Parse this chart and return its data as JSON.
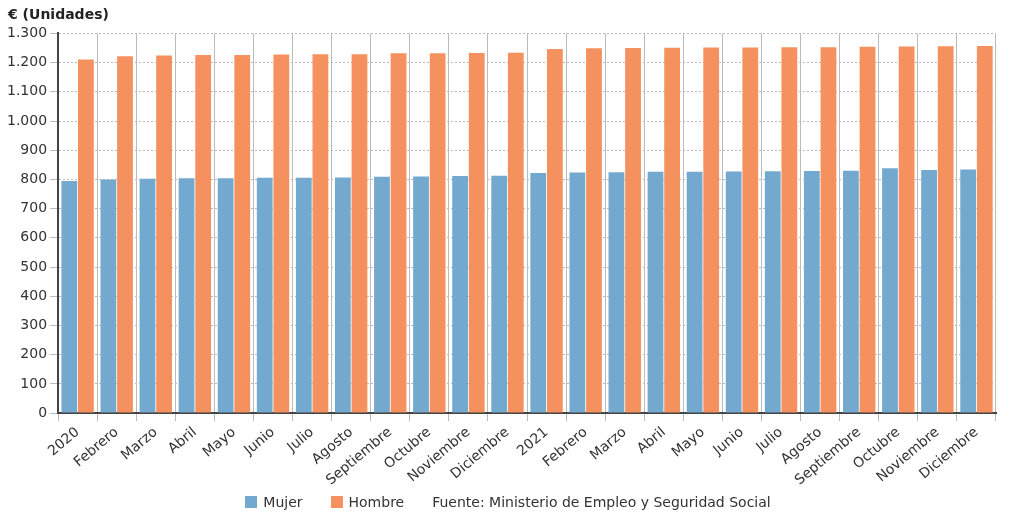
{
  "chart_data": {
    "type": "bar",
    "ylabel": "€ (Unidades)",
    "categories": [
      "2020",
      "Febrero",
      "Marzo",
      "Abril",
      "Mayo",
      "Junio",
      "Julio",
      "Agosto",
      "Septiembre",
      "Octubre",
      "Noviembre",
      "Diciembre",
      "2021",
      "Febrero",
      "Marzo",
      "Abril",
      "Mayo",
      "Junio",
      "Julio",
      "Agosto",
      "Septiembre",
      "Octubre",
      "Noviembre",
      "Diciembre"
    ],
    "series": [
      {
        "name": "Mujer",
        "color": "#74a9cf",
        "values": [
          795,
          800,
          802,
          804,
          804,
          806,
          806,
          807,
          809,
          810,
          812,
          813,
          822,
          824,
          825,
          826,
          826,
          827,
          828,
          829,
          830,
          838,
          832,
          834
        ]
      },
      {
        "name": "Hombre",
        "color": "#f4915e",
        "values": [
          1211,
          1222,
          1224,
          1226,
          1226,
          1228,
          1229,
          1229,
          1232,
          1232,
          1233,
          1234,
          1247,
          1249,
          1250,
          1251,
          1252,
          1252,
          1253,
          1253,
          1254,
          1255,
          1256,
          1257
        ]
      }
    ],
    "ylim": [
      0,
      1300
    ],
    "yticks": [
      {
        "value": 0,
        "label": "0"
      },
      {
        "value": 100,
        "label": "100"
      },
      {
        "value": 200,
        "label": "200"
      },
      {
        "value": 300,
        "label": "300"
      },
      {
        "value": 400,
        "label": "400"
      },
      {
        "value": 500,
        "label": "500"
      },
      {
        "value": 600,
        "label": "600"
      },
      {
        "value": 700,
        "label": "700"
      },
      {
        "value": 800,
        "label": "800"
      },
      {
        "value": 900,
        "label": "900"
      },
      {
        "value": 1000,
        "label": "1.000"
      },
      {
        "value": 1100,
        "label": "1.100"
      },
      {
        "value": 1200,
        "label": "1.200"
      },
      {
        "value": 1300,
        "label": "1.300"
      }
    ],
    "grid": true,
    "legend": "bottom",
    "annotations": [
      "Fuente: Ministerio de Empleo y Seguridad Social"
    ]
  }
}
